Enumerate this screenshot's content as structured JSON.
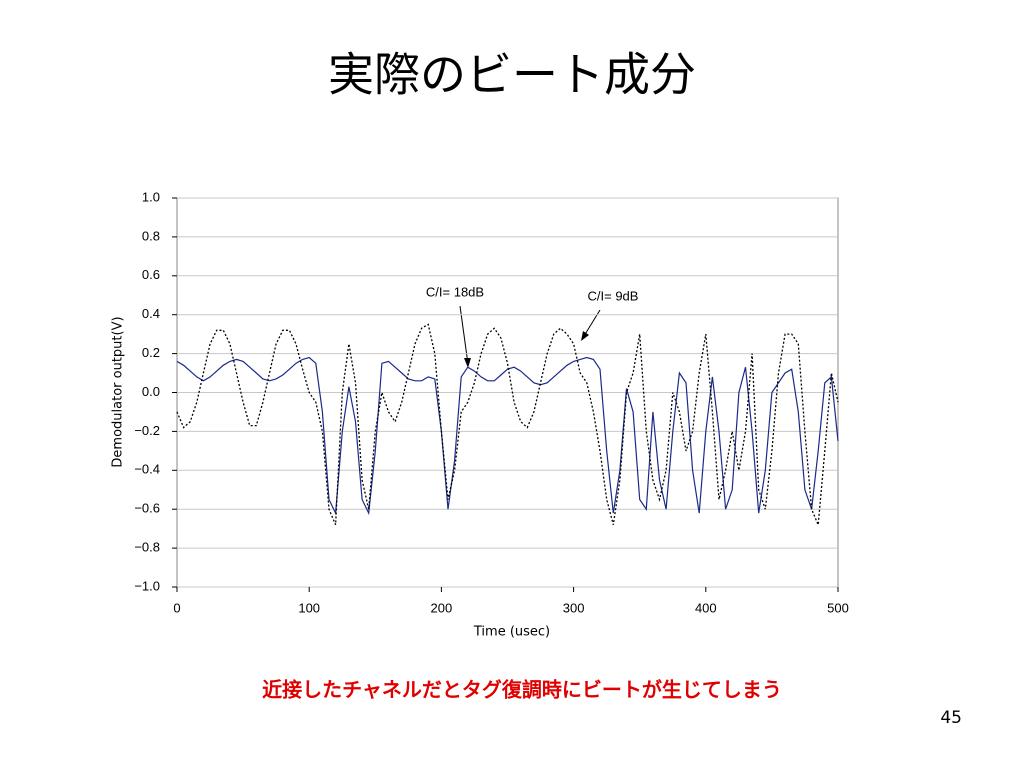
{
  "title": "実際のビート成分",
  "chart_data": {
    "type": "line",
    "xlabel": "Time (usec)",
    "ylabel": "Demodulator output(V)",
    "xlim": [
      0,
      500
    ],
    "xticks": [
      0,
      100,
      200,
      300,
      400,
      500
    ],
    "ylim": [
      -1,
      1
    ],
    "yticks": [
      {
        "value": -1,
        "label": "−1.0"
      },
      {
        "value": -0.8,
        "label": "−0.8"
      },
      {
        "value": -0.6,
        "label": "−0.6"
      },
      {
        "value": -0.4,
        "label": "−0.4"
      },
      {
        "value": -0.2,
        "label": "−0.2"
      },
      {
        "value": 0,
        "label": "0.0"
      },
      0.2,
      0.4,
      0.6,
      0.8,
      {
        "value": 1,
        "label": "1.0"
      }
    ],
    "grid": true,
    "annotations": [
      "C/I= 18dB",
      "C/I= 9dB"
    ],
    "x": [
      0,
      5,
      10,
      15,
      20,
      25,
      30,
      35,
      40,
      45,
      50,
      55,
      60,
      65,
      70,
      75,
      80,
      85,
      90,
      95,
      100,
      105,
      110,
      115,
      120,
      125,
      130,
      135,
      140,
      145,
      150,
      155,
      160,
      165,
      170,
      175,
      180,
      185,
      190,
      195,
      200,
      205,
      210,
      215,
      220,
      225,
      230,
      235,
      240,
      245,
      250,
      255,
      260,
      265,
      270,
      275,
      280,
      285,
      290,
      295,
      300,
      305,
      310,
      315,
      320,
      325,
      330,
      335,
      340,
      345,
      350,
      355,
      360,
      365,
      370,
      375,
      380,
      385,
      390,
      395,
      400,
      405,
      410,
      415,
      420,
      425,
      430,
      435,
      440,
      445,
      450,
      455,
      460,
      465,
      470,
      475,
      480,
      485,
      490,
      495,
      500
    ],
    "series": [
      {
        "name": "C/I= 18dB",
        "color": "#1a2a8a",
        "dash": false,
        "values": [
          0.16,
          0.14,
          0.11,
          0.08,
          0.06,
          0.08,
          0.11,
          0.14,
          0.16,
          0.17,
          0.16,
          0.13,
          0.1,
          0.07,
          0.06,
          0.07,
          0.09,
          0.12,
          0.15,
          0.17,
          0.18,
          0.15,
          -0.1,
          -0.55,
          -0.62,
          -0.2,
          0.03,
          -0.15,
          -0.55,
          -0.62,
          -0.3,
          0.15,
          0.16,
          0.13,
          0.1,
          0.07,
          0.06,
          0.06,
          0.08,
          0.07,
          -0.2,
          -0.6,
          -0.35,
          0.08,
          0.13,
          0.11,
          0.08,
          0.06,
          0.06,
          0.09,
          0.12,
          0.13,
          0.11,
          0.08,
          0.05,
          0.04,
          0.05,
          0.08,
          0.11,
          0.14,
          0.16,
          0.17,
          0.18,
          0.17,
          0.12,
          -0.3,
          -0.62,
          -0.4,
          0.02,
          -0.1,
          -0.55,
          -0.6,
          -0.1,
          -0.45,
          -0.6,
          -0.2,
          0.1,
          0.05,
          -0.4,
          -0.62,
          -0.2,
          0.08,
          -0.2,
          -0.6,
          -0.5,
          0.0,
          0.13,
          -0.2,
          -0.62,
          -0.4,
          0.0,
          0.05,
          0.1,
          0.12,
          -0.1,
          -0.5,
          -0.6,
          -0.3,
          0.05,
          0.08,
          -0.25
        ]
      },
      {
        "name": "C/I= 9dB",
        "color": "#000000",
        "dash": true,
        "values": [
          -0.1,
          -0.18,
          -0.15,
          -0.05,
          0.1,
          0.25,
          0.32,
          0.32,
          0.25,
          0.1,
          -0.05,
          -0.17,
          -0.17,
          -0.05,
          0.1,
          0.25,
          0.32,
          0.32,
          0.25,
          0.12,
          0.0,
          -0.05,
          -0.2,
          -0.6,
          -0.68,
          0.0,
          0.25,
          0.05,
          -0.45,
          -0.6,
          -0.2,
          0.0,
          -0.1,
          -0.15,
          -0.05,
          0.1,
          0.25,
          0.33,
          0.35,
          0.2,
          -0.2,
          -0.55,
          -0.4,
          -0.1,
          -0.05,
          0.05,
          0.2,
          0.3,
          0.33,
          0.28,
          0.15,
          -0.05,
          -0.15,
          -0.18,
          -0.1,
          0.05,
          0.2,
          0.3,
          0.33,
          0.3,
          0.25,
          0.1,
          0.05,
          -0.1,
          -0.3,
          -0.55,
          -0.68,
          -0.45,
          0.0,
          0.1,
          0.3,
          -0.2,
          -0.45,
          -0.55,
          -0.4,
          0.0,
          -0.1,
          -0.3,
          -0.2,
          0.1,
          0.3,
          -0.1,
          -0.55,
          -0.4,
          -0.2,
          -0.4,
          -0.2,
          0.2,
          -0.5,
          -0.6,
          -0.3,
          0.1,
          0.3,
          0.3,
          0.25,
          -0.2,
          -0.6,
          -0.68,
          -0.3,
          0.1,
          -0.05
        ]
      }
    ]
  },
  "caption": "近接したチャネルだとタグ復調時にビートが生じてしまう",
  "page_number": "45"
}
